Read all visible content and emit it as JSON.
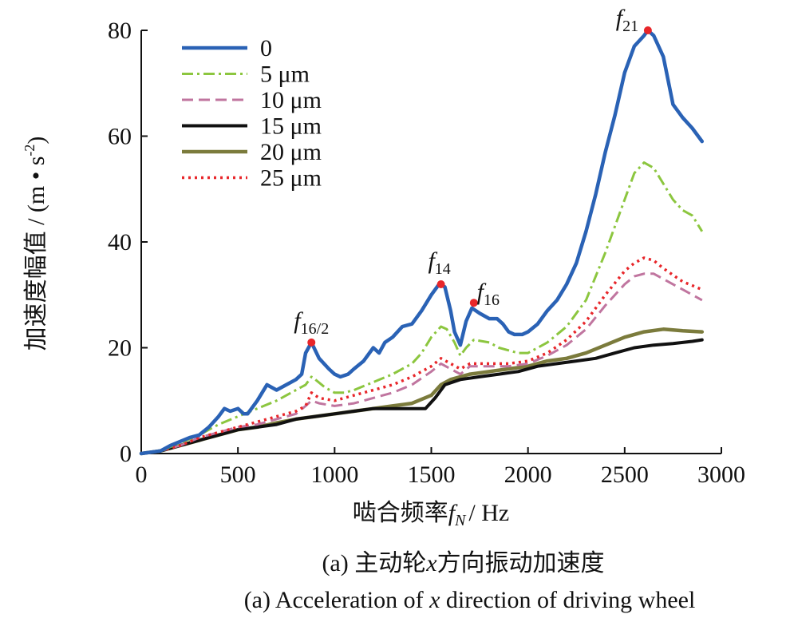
{
  "chart_data": {
    "type": "line",
    "xlabel": "啮合频率f_N / Hz",
    "xlabel_main": "啮合频率",
    "xlabel_var": "f",
    "xlabel_sub": "N",
    "xlabel_unit": "/ Hz",
    "ylabel": "加速度幅值 / (m • s⁻²)",
    "ylabel_main": "加速度幅值 / (m • s",
    "ylabel_sup": "-2",
    "ylabel_end": ")",
    "xlim": [
      0,
      3000
    ],
    "ylim": [
      0,
      80
    ],
    "xticks": [
      "0",
      "500",
      "1000",
      "1500",
      "2000",
      "2500",
      "3000"
    ],
    "yticks": [
      "0",
      "20",
      "40",
      "60",
      "80"
    ],
    "grid": false,
    "legend_position": "top-left",
    "series": [
      {
        "name": "0",
        "color": "#2a62b5",
        "dash": "solid",
        "width": 4.5,
        "points": [
          [
            0,
            0
          ],
          [
            100,
            0.5
          ],
          [
            150,
            1.5
          ],
          [
            250,
            3
          ],
          [
            300,
            3.5
          ],
          [
            350,
            5
          ],
          [
            400,
            7
          ],
          [
            430,
            8.5
          ],
          [
            460,
            8
          ],
          [
            500,
            8.5
          ],
          [
            530,
            7.5
          ],
          [
            550,
            7.5
          ],
          [
            600,
            10
          ],
          [
            650,
            13
          ],
          [
            700,
            12
          ],
          [
            750,
            13
          ],
          [
            800,
            14
          ],
          [
            830,
            15
          ],
          [
            850,
            19
          ],
          [
            880,
            21
          ],
          [
            920,
            18
          ],
          [
            970,
            16
          ],
          [
            1000,
            15
          ],
          [
            1030,
            14.5
          ],
          [
            1070,
            15
          ],
          [
            1100,
            16
          ],
          [
            1150,
            17.5
          ],
          [
            1200,
            20
          ],
          [
            1230,
            19
          ],
          [
            1260,
            21
          ],
          [
            1300,
            22
          ],
          [
            1350,
            24
          ],
          [
            1400,
            24.5
          ],
          [
            1450,
            27
          ],
          [
            1500,
            30
          ],
          [
            1540,
            32
          ],
          [
            1570,
            31.5
          ],
          [
            1600,
            27
          ],
          [
            1620,
            23
          ],
          [
            1650,
            20.5
          ],
          [
            1680,
            25
          ],
          [
            1710,
            27.5
          ],
          [
            1750,
            26.5
          ],
          [
            1800,
            25.5
          ],
          [
            1840,
            25.5
          ],
          [
            1870,
            24.5
          ],
          [
            1900,
            23
          ],
          [
            1930,
            22.5
          ],
          [
            1970,
            22.5
          ],
          [
            2000,
            23
          ],
          [
            2050,
            24.5
          ],
          [
            2100,
            27
          ],
          [
            2150,
            29
          ],
          [
            2200,
            32
          ],
          [
            2250,
            36
          ],
          [
            2300,
            42
          ],
          [
            2350,
            49
          ],
          [
            2400,
            57
          ],
          [
            2450,
            64
          ],
          [
            2500,
            72
          ],
          [
            2550,
            77
          ],
          [
            2600,
            79
          ],
          [
            2620,
            80
          ],
          [
            2650,
            79
          ],
          [
            2700,
            75
          ],
          [
            2750,
            66
          ],
          [
            2800,
            63.5
          ],
          [
            2850,
            61.5
          ],
          [
            2900,
            59
          ]
        ]
      },
      {
        "name": "5 μm",
        "color": "#8cc63f",
        "dash": "14,5,3,5",
        "width": 3,
        "points": [
          [
            0,
            0
          ],
          [
            100,
            0.5
          ],
          [
            200,
            2
          ],
          [
            300,
            3.5
          ],
          [
            400,
            5.5
          ],
          [
            500,
            7
          ],
          [
            600,
            8.5
          ],
          [
            700,
            10
          ],
          [
            800,
            12
          ],
          [
            850,
            13
          ],
          [
            880,
            14.5
          ],
          [
            900,
            14
          ],
          [
            950,
            12.5
          ],
          [
            1000,
            11.5
          ],
          [
            1050,
            11.5
          ],
          [
            1100,
            12
          ],
          [
            1200,
            13.5
          ],
          [
            1300,
            15
          ],
          [
            1400,
            17
          ],
          [
            1450,
            19
          ],
          [
            1500,
            22
          ],
          [
            1550,
            24
          ],
          [
            1580,
            23.5
          ],
          [
            1620,
            21
          ],
          [
            1650,
            18.5
          ],
          [
            1680,
            20
          ],
          [
            1720,
            21.5
          ],
          [
            1800,
            21
          ],
          [
            1850,
            20
          ],
          [
            1900,
            19.5
          ],
          [
            1950,
            19
          ],
          [
            2000,
            19
          ],
          [
            2100,
            21
          ],
          [
            2200,
            24
          ],
          [
            2300,
            29
          ],
          [
            2400,
            38
          ],
          [
            2500,
            48
          ],
          [
            2550,
            53
          ],
          [
            2600,
            55
          ],
          [
            2650,
            54
          ],
          [
            2700,
            51
          ],
          [
            2750,
            48
          ],
          [
            2800,
            46
          ],
          [
            2850,
            45
          ],
          [
            2900,
            42
          ]
        ]
      },
      {
        "name": "10 μm",
        "color": "#c0759f",
        "dash": "14,7",
        "width": 3,
        "points": [
          [
            0,
            0
          ],
          [
            100,
            0.5
          ],
          [
            200,
            1.5
          ],
          [
            300,
            3
          ],
          [
            400,
            4
          ],
          [
            500,
            5
          ],
          [
            600,
            5.5
          ],
          [
            700,
            6.5
          ],
          [
            800,
            7.5
          ],
          [
            850,
            9
          ],
          [
            880,
            10
          ],
          [
            920,
            9.5
          ],
          [
            1000,
            9
          ],
          [
            1100,
            9.5
          ],
          [
            1200,
            10.5
          ],
          [
            1300,
            11.5
          ],
          [
            1400,
            13
          ],
          [
            1500,
            15.5
          ],
          [
            1550,
            17
          ],
          [
            1600,
            16
          ],
          [
            1650,
            15
          ],
          [
            1700,
            16.5
          ],
          [
            1800,
            16.5
          ],
          [
            1900,
            16.5
          ],
          [
            2000,
            17
          ],
          [
            2100,
            18.5
          ],
          [
            2200,
            20.5
          ],
          [
            2300,
            23.5
          ],
          [
            2400,
            28
          ],
          [
            2500,
            32
          ],
          [
            2550,
            33.5
          ],
          [
            2600,
            34
          ],
          [
            2650,
            34
          ],
          [
            2700,
            33
          ],
          [
            2800,
            31
          ],
          [
            2900,
            29
          ]
        ]
      },
      {
        "name": "15 μm",
        "color": "#111111",
        "dash": "solid",
        "width": 4,
        "points": [
          [
            0,
            0
          ],
          [
            100,
            0.5
          ],
          [
            200,
            1.5
          ],
          [
            300,
            2.5
          ],
          [
            400,
            3.5
          ],
          [
            500,
            4.5
          ],
          [
            600,
            5
          ],
          [
            700,
            5.5
          ],
          [
            800,
            6.5
          ],
          [
            900,
            7
          ],
          [
            1000,
            7.5
          ],
          [
            1100,
            8
          ],
          [
            1200,
            8.5
          ],
          [
            1300,
            8.5
          ],
          [
            1400,
            8.5
          ],
          [
            1470,
            8.5
          ],
          [
            1520,
            10.5
          ],
          [
            1570,
            13
          ],
          [
            1650,
            14
          ],
          [
            1750,
            14.5
          ],
          [
            1850,
            15
          ],
          [
            1950,
            15.5
          ],
          [
            2050,
            16.5
          ],
          [
            2150,
            17
          ],
          [
            2250,
            17.5
          ],
          [
            2350,
            18
          ],
          [
            2450,
            19
          ],
          [
            2550,
            20
          ],
          [
            2650,
            20.5
          ],
          [
            2750,
            20.8
          ],
          [
            2850,
            21.2
          ],
          [
            2900,
            21.5
          ]
        ]
      },
      {
        "name": "20 μm",
        "color": "#7b7b3c",
        "dash": "solid",
        "width": 4.5,
        "points": [
          [
            0,
            0
          ],
          [
            100,
            0.5
          ],
          [
            200,
            1.5
          ],
          [
            300,
            2.5
          ],
          [
            400,
            3.5
          ],
          [
            500,
            4.5
          ],
          [
            600,
            5
          ],
          [
            700,
            5.8
          ],
          [
            800,
            6.5
          ],
          [
            900,
            7
          ],
          [
            1000,
            7.5
          ],
          [
            1100,
            8
          ],
          [
            1200,
            8.5
          ],
          [
            1300,
            9
          ],
          [
            1400,
            9.5
          ],
          [
            1500,
            11
          ],
          [
            1550,
            13
          ],
          [
            1600,
            14
          ],
          [
            1700,
            15
          ],
          [
            1800,
            15.5
          ],
          [
            1900,
            16
          ],
          [
            2000,
            16.5
          ],
          [
            2100,
            17.5
          ],
          [
            2200,
            18
          ],
          [
            2300,
            19
          ],
          [
            2400,
            20.5
          ],
          [
            2500,
            22
          ],
          [
            2600,
            23
          ],
          [
            2700,
            23.5
          ],
          [
            2800,
            23.2
          ],
          [
            2900,
            23
          ]
        ]
      },
      {
        "name": "25 μm",
        "color": "#e8262a",
        "dash": "3,5",
        "width": 3.5,
        "points": [
          [
            0,
            0
          ],
          [
            100,
            0.5
          ],
          [
            200,
            1.5
          ],
          [
            300,
            3
          ],
          [
            400,
            4
          ],
          [
            500,
            5
          ],
          [
            600,
            6
          ],
          [
            700,
            7
          ],
          [
            800,
            8
          ],
          [
            850,
            9
          ],
          [
            880,
            11.5
          ],
          [
            920,
            10.5
          ],
          [
            1000,
            10
          ],
          [
            1100,
            11
          ],
          [
            1200,
            12
          ],
          [
            1300,
            13
          ],
          [
            1400,
            14.5
          ],
          [
            1500,
            16.5
          ],
          [
            1550,
            18
          ],
          [
            1600,
            17
          ],
          [
            1650,
            16
          ],
          [
            1700,
            17
          ],
          [
            1800,
            17
          ],
          [
            1900,
            17
          ],
          [
            2000,
            17.5
          ],
          [
            2100,
            19
          ],
          [
            2200,
            21.5
          ],
          [
            2300,
            25
          ],
          [
            2400,
            30
          ],
          [
            2500,
            34.5
          ],
          [
            2550,
            36
          ],
          [
            2600,
            37
          ],
          [
            2650,
            36.5
          ],
          [
            2700,
            35
          ],
          [
            2800,
            32.5
          ],
          [
            2900,
            31
          ]
        ]
      }
    ],
    "annotations": [
      {
        "label_main": "f",
        "label_sub": "16/2",
        "x": 880,
        "y": 21
      },
      {
        "label_main": "f",
        "label_sub": "14",
        "x": 1550,
        "y": 32
      },
      {
        "label_main": "f",
        "label_sub": "16",
        "x": 1720,
        "y": 28.5
      },
      {
        "label_main": "f",
        "label_sub": "21",
        "x": 2620,
        "y": 80
      }
    ],
    "annotation_marker_color": "#e8262a"
  },
  "captions": {
    "cn_prefix": "(a) 主动轮",
    "cn_var": "x",
    "cn_suffix": "方向振动加速度",
    "en_prefix": "(a) Acceleration of ",
    "en_var": "x",
    "en_suffix": " direction of driving wheel"
  }
}
